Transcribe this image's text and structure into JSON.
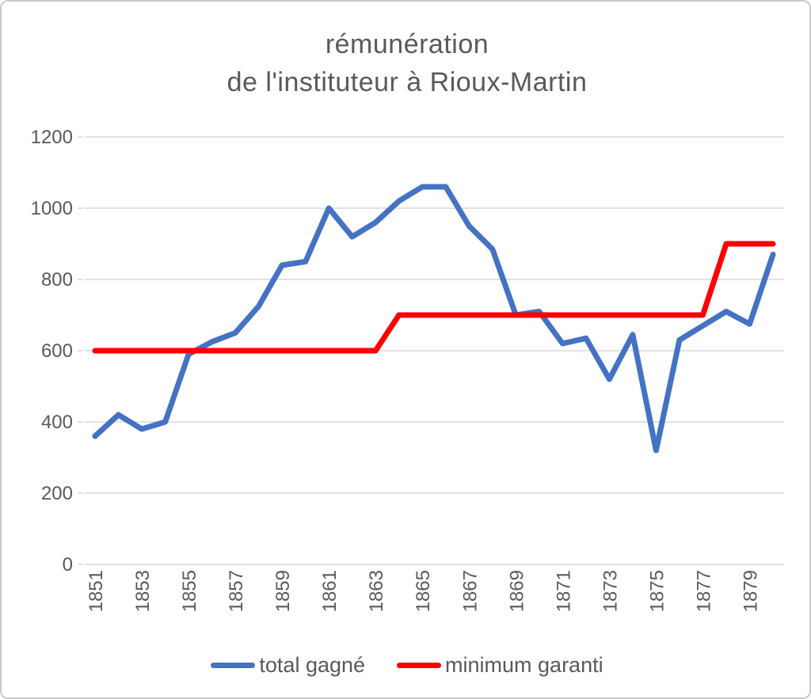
{
  "title": {
    "line1": "rémunération",
    "line2": "de l'instituteur à Rioux-Martin"
  },
  "chart_data": {
    "type": "line",
    "title": "rémunération de l'instituteur à Rioux-Martin",
    "x": [
      1851,
      1852,
      1853,
      1854,
      1855,
      1856,
      1857,
      1858,
      1859,
      1860,
      1861,
      1862,
      1863,
      1864,
      1865,
      1866,
      1867,
      1868,
      1869,
      1870,
      1871,
      1872,
      1873,
      1874,
      1875,
      1876,
      1877,
      1878,
      1879,
      1880
    ],
    "series": [
      {
        "name": "total gagné",
        "color": "#4472C4",
        "values": [
          360,
          420,
          380,
          400,
          590,
          625,
          650,
          725,
          840,
          850,
          1000,
          920,
          960,
          1020,
          1060,
          1060,
          950,
          885,
          700,
          710,
          620,
          635,
          520,
          645,
          320,
          630,
          670,
          710,
          675,
          870
        ]
      },
      {
        "name": "minimum garanti",
        "color": "#FF0000",
        "values": [
          600,
          600,
          600,
          600,
          600,
          600,
          600,
          600,
          600,
          600,
          600,
          600,
          600,
          700,
          700,
          700,
          700,
          700,
          700,
          700,
          700,
          700,
          700,
          700,
          700,
          700,
          700,
          900,
          900,
          900
        ]
      }
    ],
    "xlabel": "",
    "ylabel": "",
    "ylim": [
      0,
      1200
    ],
    "yticks": [
      0,
      200,
      400,
      600,
      800,
      1000,
      1200
    ],
    "xticks": [
      1851,
      1853,
      1855,
      1857,
      1859,
      1861,
      1863,
      1865,
      1867,
      1869,
      1871,
      1873,
      1875,
      1877,
      1879
    ],
    "grid": "horizontal",
    "gridline_color": "#D9D9D9",
    "label_color": "#595959",
    "legend_position": "bottom"
  }
}
